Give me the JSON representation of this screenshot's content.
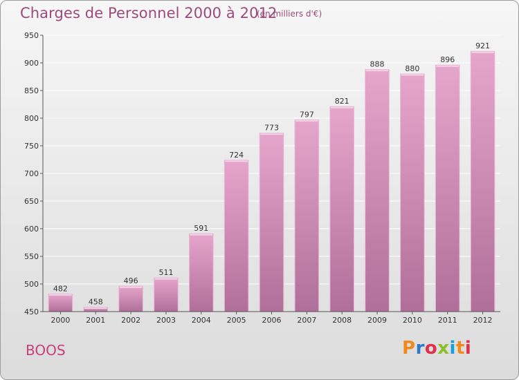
{
  "header": {
    "title": "Charges de Personnel 2000 à 2012",
    "subtitle": "(en milliers d'€)"
  },
  "footer": {
    "town": "BOOS",
    "logo": "Proxiti",
    "logo_colors": [
      "#f08a1c",
      "#2b78c8",
      "#e0304a",
      "#8bbf2a",
      "#1aa0d8",
      "#f08a1c",
      "#e0304a"
    ]
  },
  "colors": {
    "bar_top": "#e6a6cc",
    "bar_bottom": "#b06f98",
    "bar_edge": "#e9b8d6",
    "grid": "#ffffff"
  },
  "chart_data": {
    "type": "bar",
    "title": "Charges de Personnel 2000 à 2012",
    "xlabel": "",
    "ylabel": "",
    "ylim": [
      450,
      950
    ],
    "yticks": [
      450,
      500,
      550,
      600,
      650,
      700,
      750,
      800,
      850,
      900,
      950
    ],
    "grid": true,
    "categories": [
      "2000",
      "2001",
      "2002",
      "2003",
      "2004",
      "2005",
      "2006",
      "2007",
      "2008",
      "2009",
      "2010",
      "2011",
      "2012"
    ],
    "values": [
      482,
      458,
      496,
      511,
      591,
      724,
      773,
      797,
      821,
      888,
      880,
      896,
      921
    ]
  }
}
